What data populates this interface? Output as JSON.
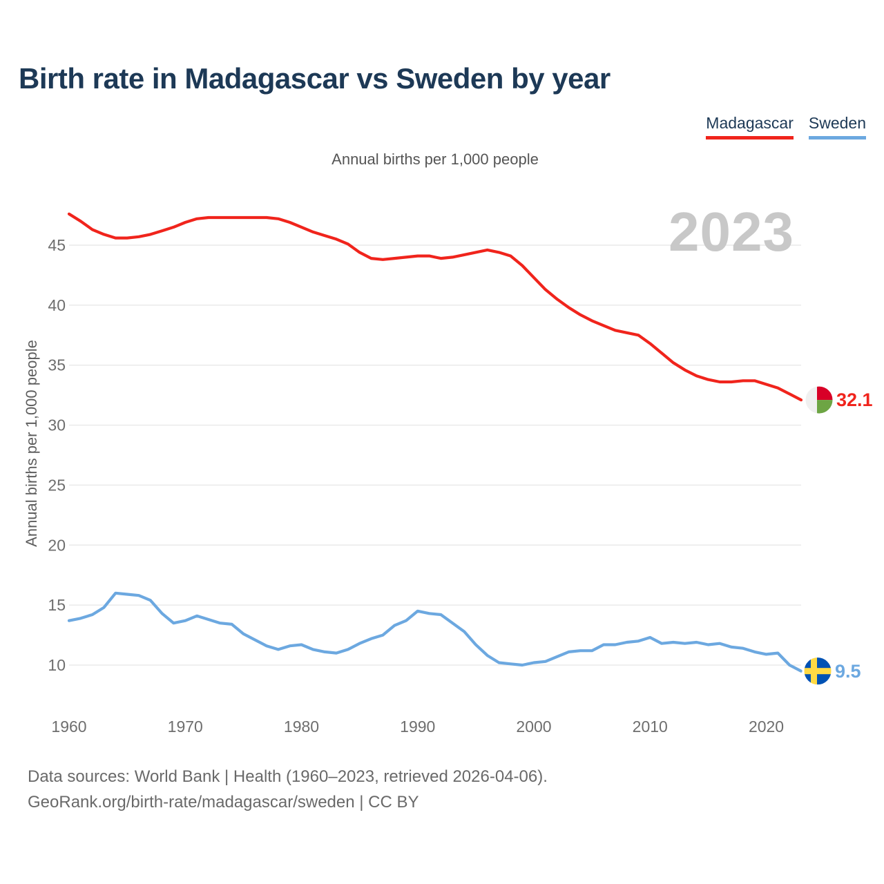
{
  "header": {
    "title": "Birth rate in Madagascar vs Sweden by year"
  },
  "legend": {
    "items": [
      {
        "label": "Madagascar",
        "color": "#f0241c"
      },
      {
        "label": "Sweden",
        "color": "#6ca8e0"
      }
    ]
  },
  "subtitle": "Annual births per 1,000 people",
  "watermark": "2023",
  "axes": {
    "y_label": "Annual births per 1,000 people"
  },
  "icons": {
    "madagascar_flag": {
      "name": "madagascar-flag-icon",
      "white": "#f0f0f0",
      "red": "#d80027",
      "green": "#6da544"
    },
    "sweden_flag": {
      "name": "sweden-flag-icon",
      "blue": "#0052b4",
      "yellow": "#ffda44"
    }
  },
  "footer": {
    "line1": "Data sources: World Bank | Health (1960–2023, retrieved 2026-04-06).",
    "line2": "GeoRank.org/birth-rate/madagascar/sweden | CC BY"
  },
  "chart_data": {
    "type": "line",
    "title": "Birth rate in Madagascar vs Sweden by year",
    "subtitle": "Annual births per 1,000 people",
    "ylabel": "Annual births per 1,000 people",
    "xlabel": "",
    "grid": "horizontal",
    "legend_position": "top-right",
    "ylim": [
      9,
      48.5
    ],
    "xlim": [
      1960,
      2023
    ],
    "yticks": [
      10,
      15,
      20,
      25,
      30,
      35,
      40,
      45
    ],
    "xticks": [
      1960,
      1970,
      1980,
      1990,
      2000,
      2010,
      2020
    ],
    "x": [
      1960,
      1961,
      1962,
      1963,
      1964,
      1965,
      1966,
      1967,
      1968,
      1969,
      1970,
      1971,
      1972,
      1973,
      1974,
      1975,
      1976,
      1977,
      1978,
      1979,
      1980,
      1981,
      1982,
      1983,
      1984,
      1985,
      1986,
      1987,
      1988,
      1989,
      1990,
      1991,
      1992,
      1993,
      1994,
      1995,
      1996,
      1997,
      1998,
      1999,
      2000,
      2001,
      2002,
      2003,
      2004,
      2005,
      2006,
      2007,
      2008,
      2009,
      2010,
      2011,
      2012,
      2013,
      2014,
      2015,
      2016,
      2017,
      2018,
      2019,
      2020,
      2021,
      2022,
      2023
    ],
    "series": [
      {
        "name": "Madagascar",
        "color": "#f0241c",
        "end_label": "32.1",
        "flag": "madagascar_flag",
        "values": [
          47.6,
          47.0,
          46.3,
          45.9,
          45.6,
          45.6,
          45.7,
          45.9,
          46.2,
          46.5,
          46.9,
          47.2,
          47.3,
          47.3,
          47.3,
          47.3,
          47.3,
          47.3,
          47.2,
          46.9,
          46.5,
          46.1,
          45.8,
          45.5,
          45.1,
          44.4,
          43.9,
          43.8,
          43.9,
          44.0,
          44.1,
          44.1,
          43.9,
          44.0,
          44.2,
          44.4,
          44.6,
          44.4,
          44.1,
          43.3,
          42.3,
          41.3,
          40.5,
          39.8,
          39.2,
          38.7,
          38.3,
          37.9,
          37.7,
          37.5,
          36.8,
          36.0,
          35.2,
          34.6,
          34.1,
          33.8,
          33.6,
          33.6,
          33.7,
          33.7,
          33.4,
          33.1,
          32.6,
          32.1
        ]
      },
      {
        "name": "Sweden",
        "color": "#6ca8e0",
        "end_label": "9.5",
        "flag": "sweden_flag",
        "values": [
          13.7,
          13.9,
          14.2,
          14.8,
          16.0,
          15.9,
          15.8,
          15.4,
          14.3,
          13.5,
          13.7,
          14.1,
          13.8,
          13.5,
          13.4,
          12.6,
          12.1,
          11.6,
          11.3,
          11.6,
          11.7,
          11.3,
          11.1,
          11.0,
          11.3,
          11.8,
          12.2,
          12.5,
          13.3,
          13.7,
          14.5,
          14.3,
          14.2,
          13.5,
          12.8,
          11.7,
          10.8,
          10.2,
          10.1,
          10.0,
          10.2,
          10.3,
          10.7,
          11.1,
          11.2,
          11.2,
          11.7,
          11.7,
          11.9,
          12.0,
          12.3,
          11.8,
          11.9,
          11.8,
          11.9,
          11.7,
          11.8,
          11.5,
          11.4,
          11.1,
          10.9,
          11.0,
          10.0,
          9.5
        ]
      }
    ]
  }
}
